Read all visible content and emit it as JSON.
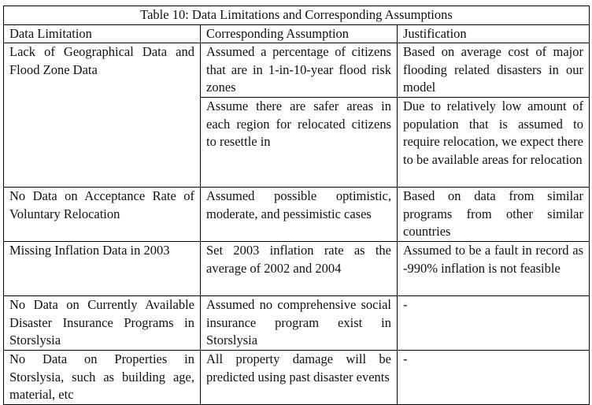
{
  "table": {
    "title": "Table 10: Data Limitations and Corresponding Assumptions",
    "headers": [
      "Data Limitation",
      "Corresponding Assumption",
      "Justification"
    ],
    "rows": [
      {
        "limitation": "Lack of Geographical Data and Flood Zone Data",
        "assumptions": [
          {
            "assumption": "Assumed a percentage of citizens that are in 1-in-10-year flood risk zones",
            "justification": "Based on average cost of major flooding related disasters in our model"
          },
          {
            "assumption": "Assume there are safer areas in each region for relocated citizens to resettle in",
            "justification": "Due to relatively low amount of population that is assumed to require relocation, we expect there to be available areas for relocation"
          }
        ]
      },
      {
        "limitation": "No Data on Acceptance Rate of Voluntary Relocation",
        "assumption": "Assumed possible optimistic, moderate, and pessimistic cases",
        "justification": "Based on data from similar programs from other similar countries"
      },
      {
        "limitation": "Missing Inflation Data in 2003",
        "assumption": "Set 2003 inflation rate as the average of 2002 and 2004",
        "justification": "Assumed to be a fault in record as -990% inflation is not feasible"
      },
      {
        "limitation": "No Data on Currently Available Disaster Insurance Programs in Storslysia",
        "assumption": "Assumed no comprehensive social insurance program exist in Storslysia",
        "justification": "-"
      },
      {
        "limitation": "No Data on Properties in Storslysia, such as building age, material, etc",
        "assumption": "All property damage will be predicted using past disaster events",
        "justification": "-"
      }
    ]
  }
}
